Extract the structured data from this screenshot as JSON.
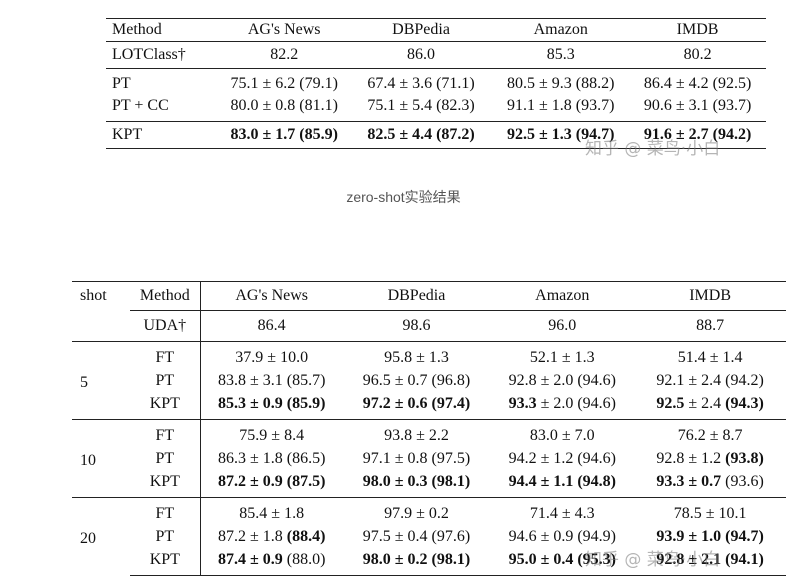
{
  "table1": {
    "headers": [
      "Method",
      "AG's News",
      "DBPedia",
      "Amazon",
      "IMDB"
    ],
    "rows": [
      {
        "method": "LOTClass†",
        "cells": [
          {
            "v": "82.2"
          },
          {
            "v": "86.0"
          },
          {
            "v": "85.3"
          },
          {
            "v": "80.2"
          }
        ]
      },
      {
        "method": "PT",
        "cells": [
          {
            "v": "75.1 ± 6.2 (79.1)"
          },
          {
            "v": "67.4 ± 3.6 (71.1)"
          },
          {
            "v": "80.5 ± 9.3 (88.2)"
          },
          {
            "v": "86.4 ± 4.2 (92.5)"
          }
        ]
      },
      {
        "method": "PT + CC",
        "cells": [
          {
            "v": "80.0 ± 0.8 (81.1)"
          },
          {
            "v": "75.1 ± 5.4 (82.3)"
          },
          {
            "v": "91.1 ± 1.8 (93.7)"
          },
          {
            "v": "90.6 ± 3.1 (93.7)"
          }
        ]
      },
      {
        "method": "KPT",
        "cells": [
          {
            "a": "83.0 ± 1.7",
            "b": "(85.9)"
          },
          {
            "a": "82.5 ± 4.4",
            "b": "(87.2)"
          },
          {
            "a": "92.5 ± 1.3",
            "b": "(94.7)"
          },
          {
            "a": "91.6 ± 2.7",
            "b": "(94.2)"
          }
        ]
      }
    ]
  },
  "caption": "zero-shot实验结果",
  "table2": {
    "headers": [
      "shot",
      "Method",
      "AG's News",
      "DBPedia",
      "Amazon",
      "IMDB"
    ],
    "uda": {
      "method": "UDA†",
      "cells": [
        "86.4",
        "98.6",
        "96.0",
        "88.7"
      ]
    },
    "groups": [
      {
        "shot": "5",
        "rows": [
          {
            "method": "FT",
            "cells": [
              [
                "37.9 ± 10.0",
                ""
              ],
              [
                "95.8 ± 1.3",
                ""
              ],
              [
                "52.1 ± 1.3",
                ""
              ],
              [
                "51.4 ± 1.4",
                ""
              ]
            ]
          },
          {
            "method": "PT",
            "cells": [
              [
                "83.8 ± 3.1 (85.7)",
                ""
              ],
              [
                "96.5 ± 0.7 (96.8)",
                ""
              ],
              [
                "92.8 ± 2.0 (94.6)",
                ""
              ],
              [
                "92.1 ± 2.4 (94.2)",
                ""
              ]
            ]
          },
          {
            "method": "KPT",
            "cells": [
              [
                "",
                "85.3 ± 0.9 (85.9)"
              ],
              [
                "",
                "97.2 ± 0.6 (97.4)"
              ],
              [
                "",
                "93.3",
                " ± 2.0 (94.6)"
              ],
              [
                "",
                "92.5",
                " ± 2.4 ",
                "(94.3)"
              ]
            ]
          }
        ]
      },
      {
        "shot": "10",
        "rows": [
          {
            "method": "FT",
            "cells": [
              [
                "75.9 ± 8.4",
                ""
              ],
              [
                "93.8 ± 2.2",
                ""
              ],
              [
                "83.0 ± 7.0",
                ""
              ],
              [
                "76.2 ± 8.7",
                ""
              ]
            ]
          },
          {
            "method": "PT",
            "cells": [
              [
                "86.3 ± 1.8 (86.5)",
                ""
              ],
              [
                "97.1 ± 0.8 (97.5)",
                ""
              ],
              [
                "94.2 ± 1.2 (94.6)",
                ""
              ],
              [
                "92.8 ± 1.2 ",
                "(93.8)"
              ]
            ]
          },
          {
            "method": "KPT",
            "cells": [
              [
                "",
                "87.2 ± 0.9 (87.5)"
              ],
              [
                "",
                "98.0 ± 0.3 (98.1)"
              ],
              [
                "",
                "94.4 ± 1.1 (94.8)"
              ],
              [
                "",
                "93.3 ± 0.7",
                " (93.6)"
              ]
            ]
          }
        ]
      },
      {
        "shot": "20",
        "rows": [
          {
            "method": "FT",
            "cells": [
              [
                "85.4 ± 1.8",
                ""
              ],
              [
                "97.9 ± 0.2",
                ""
              ],
              [
                "71.4 ± 4.3",
                ""
              ],
              [
                "78.5 ± 10.1",
                ""
              ]
            ]
          },
          {
            "method": "PT",
            "cells": [
              [
                "87.2 ± 1.8 ",
                "(88.4)"
              ],
              [
                "97.5 ± 0.4 (97.6)",
                ""
              ],
              [
                "94.6 ± 0.9 (94.9)",
                ""
              ],
              [
                "",
                "93.9 ± 1.0 (94.7)"
              ]
            ]
          },
          {
            "method": "KPT",
            "cells": [
              [
                "",
                "87.4 ± 0.9",
                " (88.0)"
              ],
              [
                "",
                "98.0 ± 0.2 (98.1)"
              ],
              [
                "",
                "95.0 ± 0.4 (95.3)"
              ],
              [
                "",
                "92.8 ± 2.1 (94.1)"
              ]
            ]
          }
        ]
      }
    ]
  },
  "watermark": "知乎 @ 菜鸟·小白"
}
